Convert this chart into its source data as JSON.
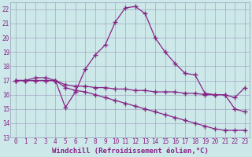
{
  "xlabel": "Windchill (Refroidissement éolien,°C)",
  "xlim": [
    -0.5,
    23.5
  ],
  "ylim": [
    13,
    22.5
  ],
  "yticks": [
    13,
    14,
    15,
    16,
    17,
    18,
    19,
    20,
    21,
    22
  ],
  "xticks": [
    0,
    1,
    2,
    3,
    4,
    5,
    6,
    7,
    8,
    9,
    10,
    11,
    12,
    13,
    14,
    15,
    16,
    17,
    18,
    19,
    20,
    21,
    22,
    23
  ],
  "bg_color": "#cce8e8",
  "line_color": "#882288",
  "line1_x": [
    0,
    1,
    2,
    3,
    4,
    5,
    6,
    7,
    8,
    9,
    10,
    11,
    12,
    13,
    14,
    15,
    16,
    17,
    18,
    19,
    20,
    21,
    22,
    23
  ],
  "line1_y": [
    17.0,
    17.0,
    17.2,
    17.2,
    17.0,
    15.1,
    16.2,
    17.8,
    18.8,
    19.5,
    21.1,
    22.1,
    22.2,
    21.7,
    20.0,
    19.0,
    18.2,
    17.5,
    17.4,
    16.1,
    16.0,
    16.0,
    15.0,
    14.8
  ],
  "line2_x": [
    0,
    1,
    2,
    3,
    4,
    5,
    6,
    7,
    8,
    9,
    10,
    11,
    12,
    13,
    14,
    15,
    16,
    17,
    18,
    19,
    20,
    21,
    22,
    23
  ],
  "line2_y": [
    17.0,
    17.0,
    17.0,
    17.0,
    17.0,
    16.7,
    16.6,
    16.6,
    16.5,
    16.5,
    16.4,
    16.4,
    16.3,
    16.3,
    16.2,
    16.2,
    16.2,
    16.1,
    16.1,
    16.0,
    16.0,
    16.0,
    15.8,
    16.5
  ],
  "line3_x": [
    0,
    1,
    2,
    3,
    4,
    5,
    6,
    7,
    8,
    9,
    10,
    11,
    12,
    13,
    14,
    15,
    16,
    17,
    18,
    19,
    20,
    21,
    22,
    23
  ],
  "line3_y": [
    17.0,
    17.0,
    17.0,
    17.0,
    17.0,
    16.5,
    16.3,
    16.2,
    16.0,
    15.8,
    15.6,
    15.4,
    15.2,
    15.0,
    14.8,
    14.6,
    14.4,
    14.2,
    14.0,
    13.8,
    13.6,
    13.5,
    13.5,
    13.5
  ],
  "font_size": 6.5,
  "tick_font_size": 5.5
}
